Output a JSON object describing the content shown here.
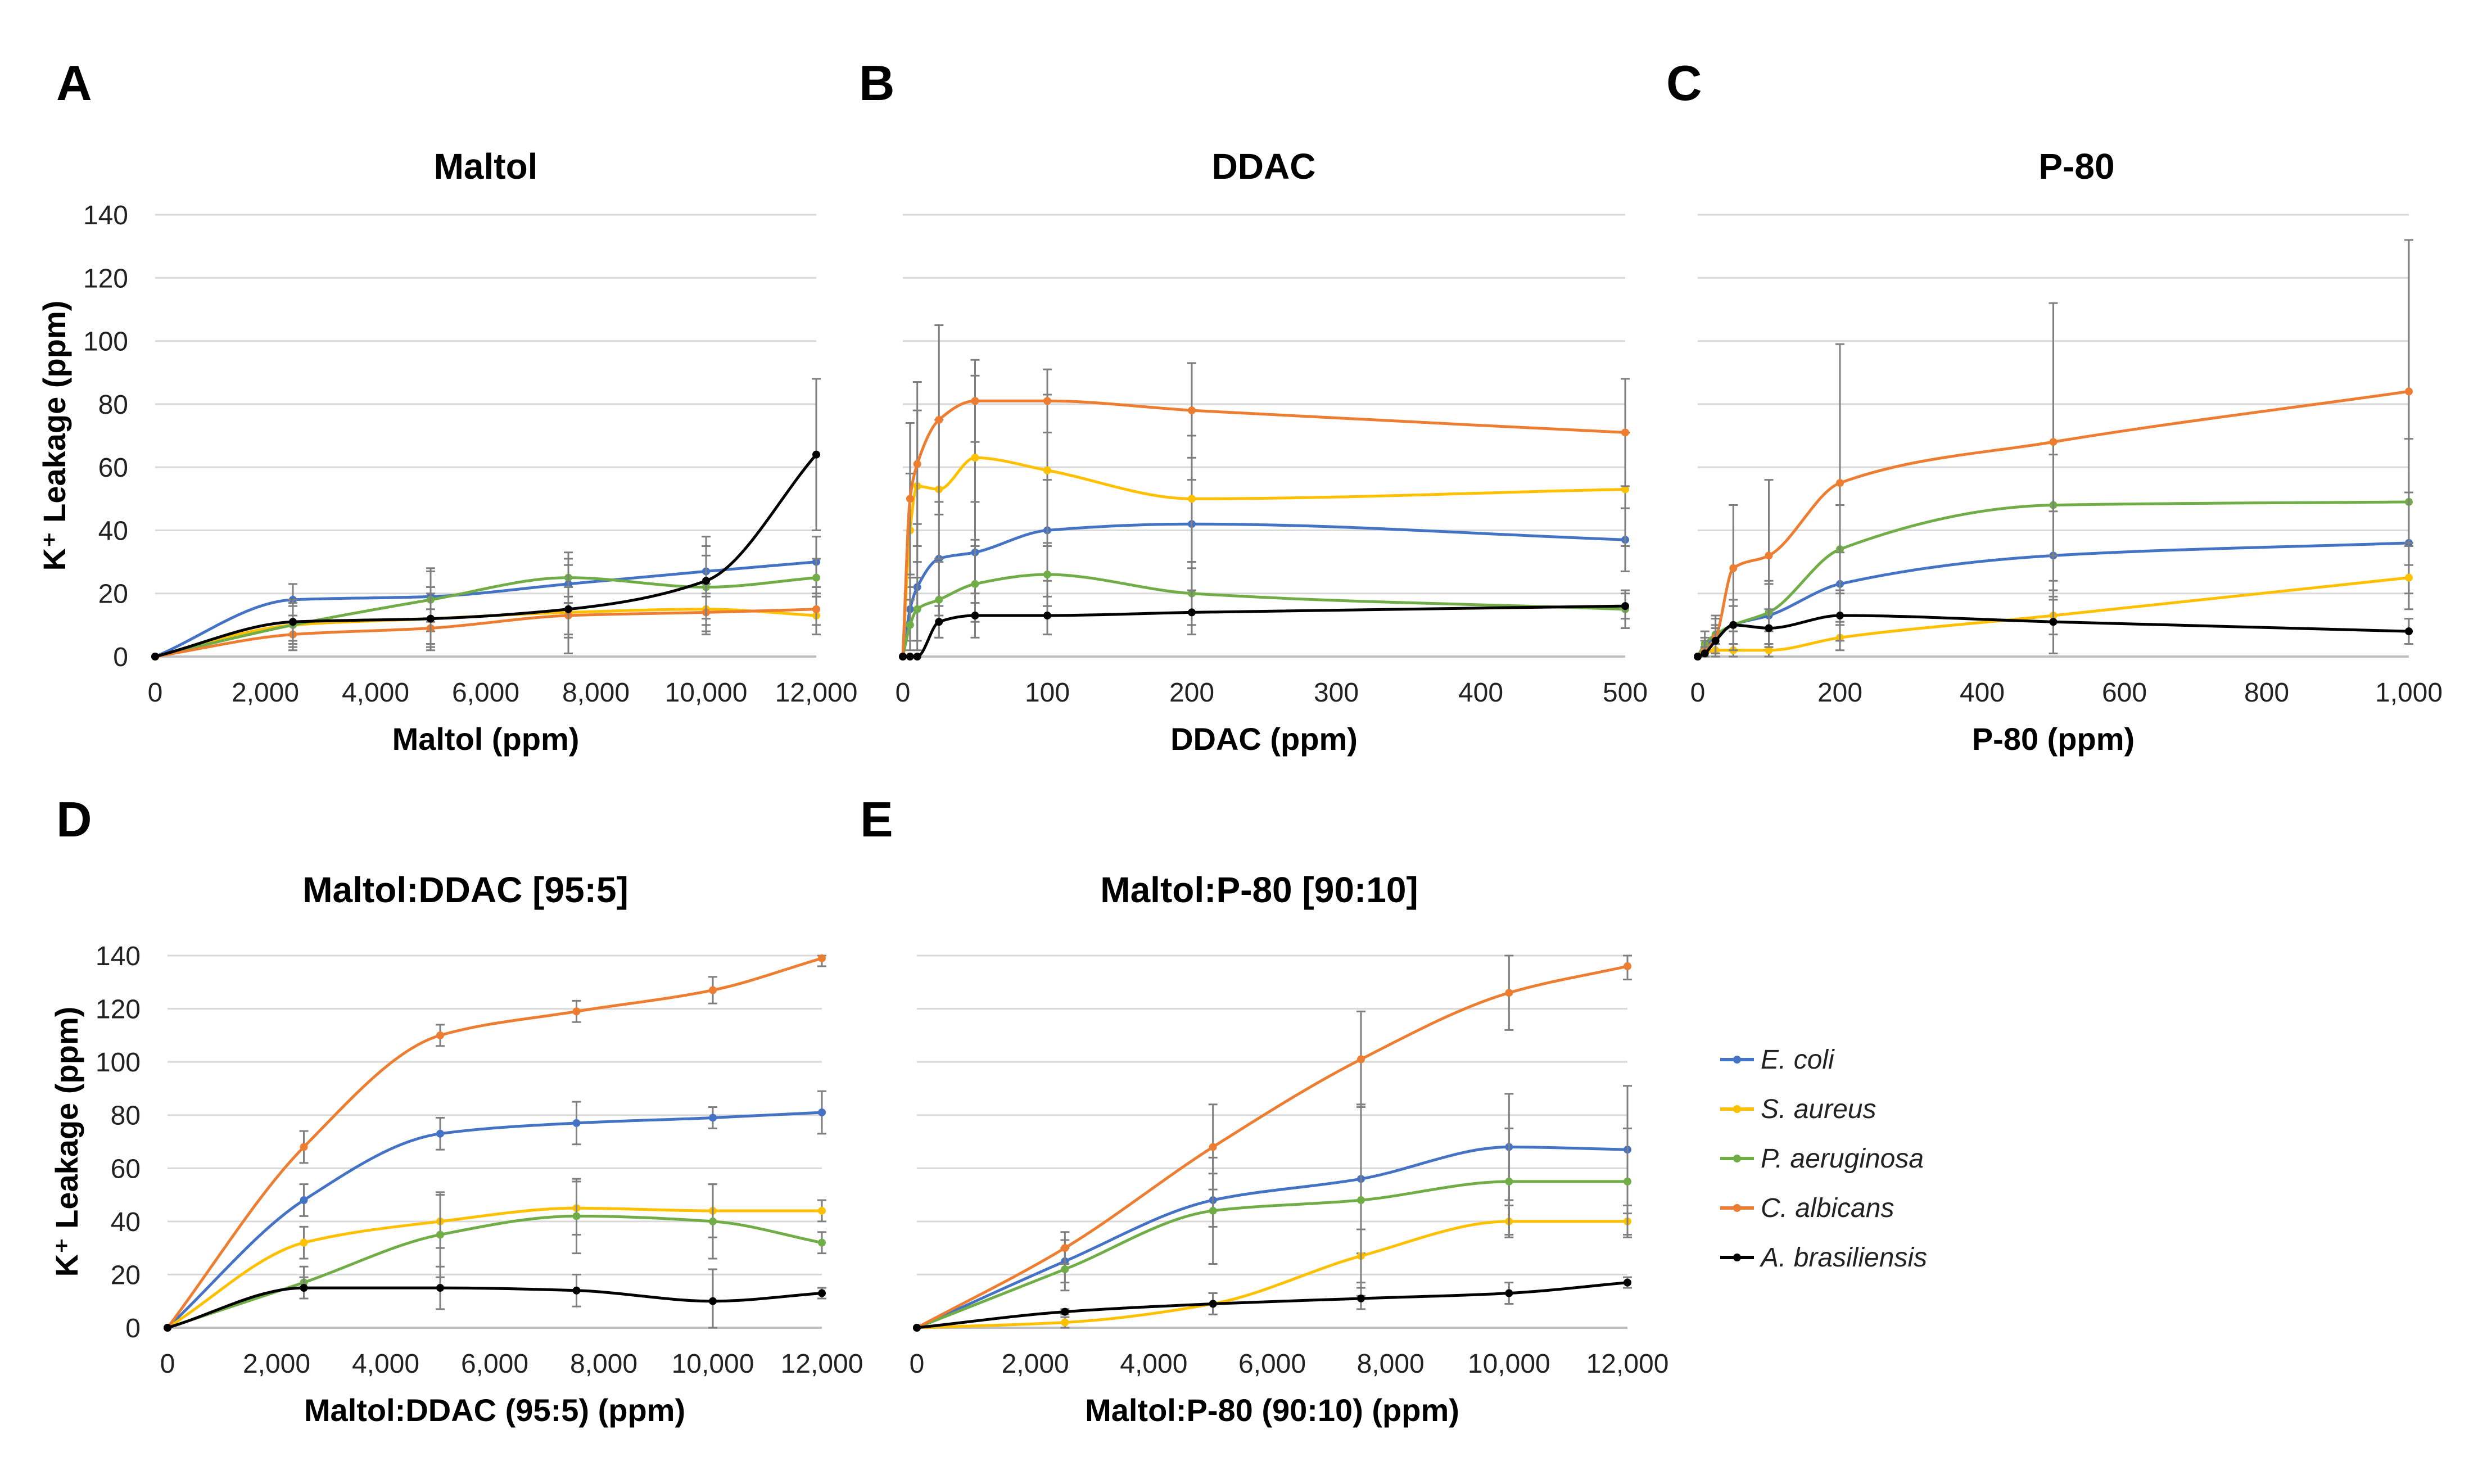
{
  "figure": {
    "colors": {
      "E. coli": "#4472C4",
      "S. aureus": "#FFC000",
      "P. aeruginosa": "#70AD47",
      "C. albicans": "#ED7D31",
      "A. brasiliensis": "#000000"
    },
    "legend": [
      {
        "label": "E. coli",
        "color": "#4472C4"
      },
      {
        "label": "S. aureus",
        "color": "#FFC000"
      },
      {
        "label": "P. aeruginosa",
        "color": "#70AD47"
      },
      {
        "label": "C. albicans",
        "color": "#ED7D31"
      },
      {
        "label": "A. brasiliensis",
        "color": "#000000"
      }
    ]
  },
  "chart_data": [
    {
      "type": "line",
      "panel_label": "A",
      "title": "Maltol",
      "xlabel": "Maltol (ppm)",
      "ylabel": "K⁺ Leakage  (ppm)",
      "xlim": [
        0,
        12000
      ],
      "ylim": [
        0,
        140
      ],
      "xticks": [
        0,
        2000,
        4000,
        6000,
        8000,
        10000,
        12000
      ],
      "xtick_labels": [
        "0",
        "2,000",
        "4,000",
        "6,000",
        "8,000",
        "10,000",
        "12,000"
      ],
      "yticks": [
        0,
        20,
        40,
        60,
        80,
        100,
        120,
        140
      ],
      "ytick_labels": [
        "0",
        "20",
        "40",
        "60",
        "80",
        "100",
        "120",
        "140"
      ],
      "show_yticks": true,
      "series": [
        {
          "name": "E. coli",
          "x": [
            0,
            2500,
            5000,
            7500,
            10000,
            12000
          ],
          "values": [
            0,
            18,
            19,
            23,
            27,
            30
          ],
          "err": [
            0,
            5,
            8,
            8,
            8,
            8
          ]
        },
        {
          "name": "S. aureus",
          "x": [
            0,
            2500,
            5000,
            7500,
            10000,
            12000
          ],
          "values": [
            0,
            10,
            12,
            14,
            15,
            13
          ],
          "err": [
            0,
            6,
            8,
            8,
            8,
            6
          ]
        },
        {
          "name": "P. aeruginosa",
          "x": [
            0,
            2500,
            5000,
            7500,
            10000,
            12000
          ],
          "values": [
            0,
            10,
            18,
            25,
            22,
            25
          ],
          "err": [
            0,
            8,
            10,
            8,
            10,
            6
          ]
        },
        {
          "name": "C. albicans",
          "x": [
            0,
            2500,
            5000,
            7500,
            10000,
            12000
          ],
          "values": [
            0,
            7,
            9,
            13,
            14,
            15
          ],
          "err": [
            0,
            4,
            6,
            6,
            6,
            5
          ]
        },
        {
          "name": "A. brasiliensis",
          "x": [
            0,
            2500,
            5000,
            7500,
            10000,
            12000
          ],
          "values": [
            0,
            11,
            12,
            15,
            24,
            64
          ],
          "err": [
            0,
            6,
            10,
            14,
            14,
            24
          ]
        }
      ]
    },
    {
      "type": "line",
      "panel_label": "B",
      "title": "DDAC",
      "xlabel": "DDAC (ppm)",
      "ylabel": "",
      "xlim": [
        0,
        500
      ],
      "ylim": [
        0,
        140
      ],
      "xticks": [
        0,
        100,
        200,
        300,
        400,
        500
      ],
      "xtick_labels": [
        "0",
        "100",
        "200",
        "300",
        "400",
        "500"
      ],
      "yticks": [
        0,
        20,
        40,
        60,
        80,
        100,
        120,
        140
      ],
      "ytick_labels": [],
      "show_yticks": false,
      "series": [
        {
          "name": "E. coli",
          "x": [
            0,
            5,
            10,
            25,
            50,
            100,
            200,
            500
          ],
          "values": [
            0,
            15,
            22,
            31,
            33,
            40,
            42,
            37
          ],
          "err": [
            0,
            10,
            20,
            18,
            16,
            16,
            14,
            10
          ]
        },
        {
          "name": "S. aureus",
          "x": [
            0,
            5,
            10,
            25,
            50,
            100,
            200,
            500
          ],
          "values": [
            0,
            40,
            54,
            53,
            63,
            59,
            50,
            53
          ],
          "err": [
            0,
            18,
            24,
            22,
            26,
            24,
            20,
            18
          ]
        },
        {
          "name": "P. aeruginosa",
          "x": [
            0,
            5,
            10,
            25,
            50,
            100,
            200,
            500
          ],
          "values": [
            0,
            10,
            15,
            18,
            23,
            26,
            20,
            15
          ],
          "err": [
            0,
            8,
            10,
            12,
            12,
            10,
            10,
            6
          ]
        },
        {
          "name": "C. albicans",
          "x": [
            0,
            5,
            10,
            25,
            50,
            100,
            200,
            500
          ],
          "values": [
            0,
            50,
            61,
            75,
            81,
            81,
            78,
            71
          ],
          "err": [
            0,
            24,
            26,
            30,
            13,
            10,
            15,
            17
          ]
        },
        {
          "name": "A. brasiliensis",
          "x": [
            0,
            5,
            10,
            25,
            50,
            100,
            200,
            500
          ],
          "values": [
            0,
            0,
            0,
            11,
            13,
            13,
            14,
            16
          ],
          "err": [
            0,
            0,
            0,
            5,
            7,
            6,
            7,
            4
          ]
        }
      ]
    },
    {
      "type": "line",
      "panel_label": "C",
      "title": "P-80",
      "xlabel": "P-80 (ppm)",
      "ylabel": "",
      "xlim": [
        0,
        1000
      ],
      "ylim": [
        0,
        140
      ],
      "xticks": [
        0,
        200,
        400,
        600,
        800,
        1000
      ],
      "xtick_labels": [
        "0",
        "200",
        "400",
        "600",
        "800",
        "1,000"
      ],
      "yticks": [
        0,
        20,
        40,
        60,
        80,
        100,
        120,
        140
      ],
      "ytick_labels": [],
      "show_yticks": false,
      "series": [
        {
          "name": "E. coli",
          "x": [
            0,
            10,
            25,
            50,
            100,
            200,
            500,
            1000
          ],
          "values": [
            0,
            3,
            6,
            10,
            13,
            23,
            32,
            36
          ],
          "err": [
            0,
            3,
            4,
            8,
            10,
            10,
            14,
            16
          ]
        },
        {
          "name": "S. aureus",
          "x": [
            0,
            10,
            25,
            50,
            100,
            200,
            500,
            1000
          ],
          "values": [
            0,
            1,
            2,
            2,
            2,
            6,
            13,
            25
          ],
          "err": [
            0,
            1,
            2,
            2,
            2,
            4,
            6,
            10
          ]
        },
        {
          "name": "P. aeruginosa",
          "x": [
            0,
            10,
            25,
            50,
            100,
            200,
            500,
            1000
          ],
          "values": [
            0,
            4,
            7,
            10,
            14,
            34,
            48,
            49
          ],
          "err": [
            0,
            4,
            6,
            8,
            10,
            14,
            16,
            20
          ]
        },
        {
          "name": "C. albicans",
          "x": [
            0,
            10,
            25,
            50,
            100,
            200,
            500,
            1000
          ],
          "values": [
            0,
            2,
            6,
            28,
            32,
            55,
            68,
            84
          ],
          "err": [
            0,
            3,
            6,
            20,
            24,
            44,
            44,
            48
          ]
        },
        {
          "name": "A. brasiliensis",
          "x": [
            0,
            10,
            25,
            50,
            100,
            200,
            500,
            1000
          ],
          "values": [
            0,
            1,
            5,
            10,
            9,
            13,
            11,
            8
          ],
          "err": [
            0,
            2,
            4,
            6,
            6,
            8,
            10,
            4
          ]
        }
      ]
    },
    {
      "type": "line",
      "panel_label": "D",
      "title": "Maltol:DDAC [95:5]",
      "xlabel": "Maltol:DDAC (95:5) (ppm)",
      "ylabel": "K⁺ Leakage  (ppm)",
      "xlim": [
        0,
        12000
      ],
      "ylim": [
        0,
        140
      ],
      "xticks": [
        0,
        2000,
        4000,
        6000,
        8000,
        10000,
        12000
      ],
      "xtick_labels": [
        "0",
        "2,000",
        "4,000",
        "6,000",
        "8,000",
        "10,000",
        "12,000"
      ],
      "yticks": [
        0,
        20,
        40,
        60,
        80,
        100,
        120,
        140
      ],
      "ytick_labels": [
        "0",
        "20",
        "40",
        "60",
        "80",
        "100",
        "120",
        "140"
      ],
      "show_yticks": true,
      "series": [
        {
          "name": "E. coli",
          "x": [
            0,
            2500,
            5000,
            7500,
            10000,
            12000
          ],
          "values": [
            0,
            48,
            73,
            77,
            79,
            81
          ],
          "err": [
            0,
            6,
            6,
            8,
            4,
            8
          ]
        },
        {
          "name": "S. aureus",
          "x": [
            0,
            2500,
            5000,
            7500,
            10000,
            12000
          ],
          "values": [
            0,
            32,
            40,
            45,
            44,
            44
          ],
          "err": [
            0,
            6,
            10,
            10,
            10,
            4
          ]
        },
        {
          "name": "P. aeruginosa",
          "x": [
            0,
            2500,
            5000,
            7500,
            10000,
            12000
          ],
          "values": [
            0,
            17,
            35,
            42,
            40,
            32
          ],
          "err": [
            0,
            6,
            16,
            14,
            14,
            4
          ]
        },
        {
          "name": "C. albicans",
          "x": [
            0,
            2500,
            5000,
            7500,
            10000,
            12000
          ],
          "values": [
            0,
            68,
            110,
            119,
            127,
            139
          ],
          "err": [
            0,
            6,
            4,
            4,
            5,
            3
          ]
        },
        {
          "name": "A. brasiliensis",
          "x": [
            0,
            2500,
            5000,
            7500,
            10000,
            12000
          ],
          "values": [
            0,
            15,
            15,
            14,
            10,
            13
          ],
          "err": [
            0,
            4,
            8,
            6,
            12,
            2
          ]
        }
      ]
    },
    {
      "type": "line",
      "panel_label": "E",
      "title": "Maltol:P-80 [90:10]",
      "xlabel": "Maltol:P-80 (90:10) (ppm)",
      "ylabel": "",
      "xlim": [
        0,
        12000
      ],
      "ylim": [
        0,
        140
      ],
      "xticks": [
        0,
        2000,
        4000,
        6000,
        8000,
        10000,
        12000
      ],
      "xtick_labels": [
        "0",
        "2,000",
        "4,000",
        "6,000",
        "8,000",
        "10,000",
        "12,000"
      ],
      "yticks": [
        0,
        20,
        40,
        60,
        80,
        100,
        120,
        140
      ],
      "ytick_labels": [],
      "show_yticks": false,
      "series": [
        {
          "name": "E. coli",
          "x": [
            0,
            2500,
            5000,
            7500,
            10000,
            12000
          ],
          "values": [
            0,
            25,
            48,
            56,
            68,
            67
          ],
          "err": [
            0,
            8,
            10,
            28,
            20,
            24
          ]
        },
        {
          "name": "S. aureus",
          "x": [
            0,
            2500,
            5000,
            7500,
            10000,
            12000
          ],
          "values": [
            0,
            2,
            9,
            27,
            40,
            40
          ],
          "err": [
            0,
            2,
            4,
            10,
            6,
            6
          ]
        },
        {
          "name": "P. aeruginosa",
          "x": [
            0,
            2500,
            5000,
            7500,
            10000,
            12000
          ],
          "values": [
            0,
            22,
            44,
            48,
            55,
            55
          ],
          "err": [
            0,
            8,
            20,
            36,
            20,
            20
          ]
        },
        {
          "name": "C. albicans",
          "x": [
            0,
            2500,
            5000,
            7500,
            10000,
            12000
          ],
          "values": [
            0,
            30,
            68,
            101,
            126,
            136
          ],
          "err": [
            0,
            6,
            16,
            18,
            14,
            5
          ]
        },
        {
          "name": "A. brasiliensis",
          "x": [
            0,
            2500,
            5000,
            7500,
            10000,
            12000
          ],
          "values": [
            0,
            6,
            9,
            11,
            13,
            17
          ],
          "err": [
            0,
            1,
            4,
            4,
            4,
            2
          ]
        }
      ]
    }
  ]
}
